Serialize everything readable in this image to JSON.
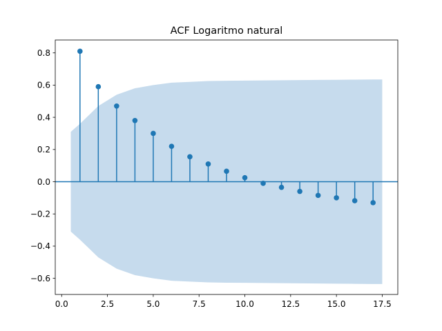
{
  "chart_data": {
    "type": "stem",
    "title": "ACF Logaritmo natural",
    "xlabel": "",
    "ylabel": "",
    "xlim": [
      -0.35,
      18.35
    ],
    "ylim": [
      -0.7,
      0.88
    ],
    "xticks": [
      0.0,
      2.5,
      5.0,
      7.5,
      10.0,
      12.5,
      15.0,
      17.5
    ],
    "xtick_labels": [
      "0.0",
      "2.5",
      "5.0",
      "7.5",
      "10.0",
      "12.5",
      "15.0",
      "17.5"
    ],
    "yticks": [
      -0.6,
      -0.4,
      -0.2,
      0.0,
      0.2,
      0.4,
      0.6,
      0.8
    ],
    "ytick_labels": [
      "−0.6",
      "−0.4",
      "−0.2",
      "0.0",
      "0.2",
      "0.4",
      "0.6",
      "0.8"
    ],
    "lags": [
      1,
      2,
      3,
      4,
      5,
      6,
      7,
      8,
      9,
      10,
      11,
      12,
      13,
      14,
      15,
      16,
      17
    ],
    "values": [
      0.81,
      0.59,
      0.47,
      0.38,
      0.3,
      0.22,
      0.155,
      0.11,
      0.065,
      0.025,
      -0.01,
      -0.035,
      -0.06,
      -0.085,
      -0.1,
      -0.118,
      -0.13
    ],
    "confidence_band": {
      "x": [
        0.5,
        1,
        2,
        3,
        4,
        5,
        6,
        7,
        8,
        9,
        10,
        11,
        12,
        13,
        14,
        15,
        16,
        17,
        17.5
      ],
      "upper": [
        0.31,
        0.36,
        0.47,
        0.54,
        0.58,
        0.6,
        0.615,
        0.62,
        0.625,
        0.627,
        0.628,
        0.629,
        0.63,
        0.631,
        0.632,
        0.633,
        0.634,
        0.635,
        0.635
      ],
      "lower": [
        -0.31,
        -0.36,
        -0.47,
        -0.54,
        -0.58,
        -0.6,
        -0.615,
        -0.62,
        -0.625,
        -0.627,
        -0.628,
        -0.629,
        -0.63,
        -0.631,
        -0.632,
        -0.633,
        -0.634,
        -0.635,
        -0.635
      ]
    },
    "colors": {
      "stem": "#1f77b4",
      "band": "#c6dbed",
      "zero_line": "#1f77b4"
    },
    "grid": false,
    "legend": "none"
  }
}
